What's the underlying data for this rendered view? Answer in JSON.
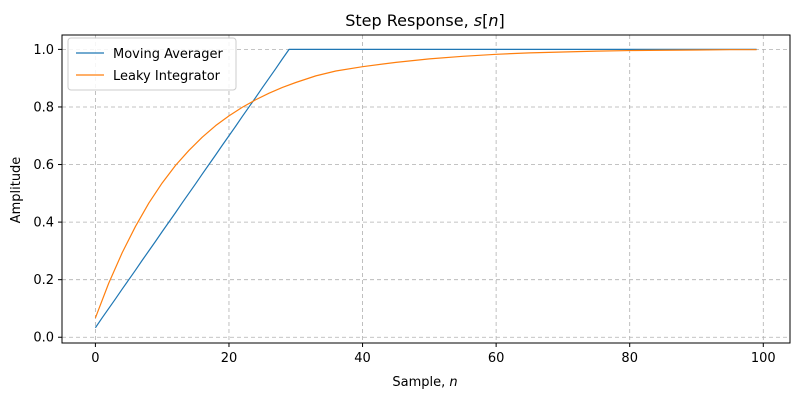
{
  "chart_data": {
    "type": "line",
    "title_main": "Step Response, ",
    "title_var": "s",
    "title_bracket_open": "[",
    "title_index": "n",
    "title_bracket_close": "]",
    "xlabel_main": "Sample, ",
    "xlabel_var": "n",
    "ylabel": "Amplitude",
    "xlim": [
      -5,
      104
    ],
    "ylim": [
      -0.02,
      1.05
    ],
    "xticks": [
      0,
      20,
      40,
      60,
      80,
      100
    ],
    "yticks": [
      0.0,
      0.2,
      0.4,
      0.6,
      0.8,
      1.0
    ],
    "xtick_labels": [
      "0",
      "20",
      "40",
      "60",
      "80",
      "100"
    ],
    "ytick_labels": [
      "0.0",
      "0.2",
      "0.4",
      "0.6",
      "0.8",
      "1.0"
    ],
    "grid": true,
    "legend_position": "top-left",
    "series": [
      {
        "name": "Moving Averager",
        "color": "#1f77b4",
        "x": [
          0,
          1,
          2,
          3,
          4,
          5,
          6,
          7,
          8,
          9,
          10,
          11,
          12,
          13,
          14,
          15,
          16,
          17,
          18,
          19,
          20,
          21,
          22,
          23,
          24,
          25,
          26,
          27,
          28,
          29,
          30,
          35,
          40,
          45,
          50,
          55,
          60,
          65,
          70,
          75,
          80,
          85,
          90,
          95,
          99
        ],
        "y": [
          0.033,
          0.067,
          0.1,
          0.133,
          0.167,
          0.2,
          0.233,
          0.267,
          0.3,
          0.333,
          0.367,
          0.4,
          0.433,
          0.467,
          0.5,
          0.533,
          0.567,
          0.6,
          0.633,
          0.667,
          0.7,
          0.733,
          0.767,
          0.8,
          0.833,
          0.867,
          0.9,
          0.933,
          0.967,
          1.0,
          1.0,
          1.0,
          1.0,
          1.0,
          1.0,
          1.0,
          1.0,
          1.0,
          1.0,
          1.0,
          1.0,
          1.0,
          1.0,
          1.0,
          1.0
        ]
      },
      {
        "name": "Leaky Integrator",
        "color": "#ff7f0e",
        "x": [
          0,
          2,
          4,
          6,
          8,
          10,
          12,
          14,
          16,
          18,
          20,
          22,
          24,
          26,
          28,
          30,
          33,
          36,
          40,
          45,
          50,
          55,
          60,
          65,
          70,
          75,
          80,
          85,
          90,
          95,
          99
        ],
        "y": [
          0.067,
          0.188,
          0.293,
          0.385,
          0.466,
          0.536,
          0.597,
          0.649,
          0.695,
          0.735,
          0.769,
          0.799,
          0.825,
          0.848,
          0.868,
          0.885,
          0.908,
          0.925,
          0.94,
          0.955,
          0.967,
          0.976,
          0.983,
          0.988,
          0.991,
          0.994,
          0.996,
          0.997,
          0.998,
          0.999,
          0.999
        ]
      }
    ]
  }
}
